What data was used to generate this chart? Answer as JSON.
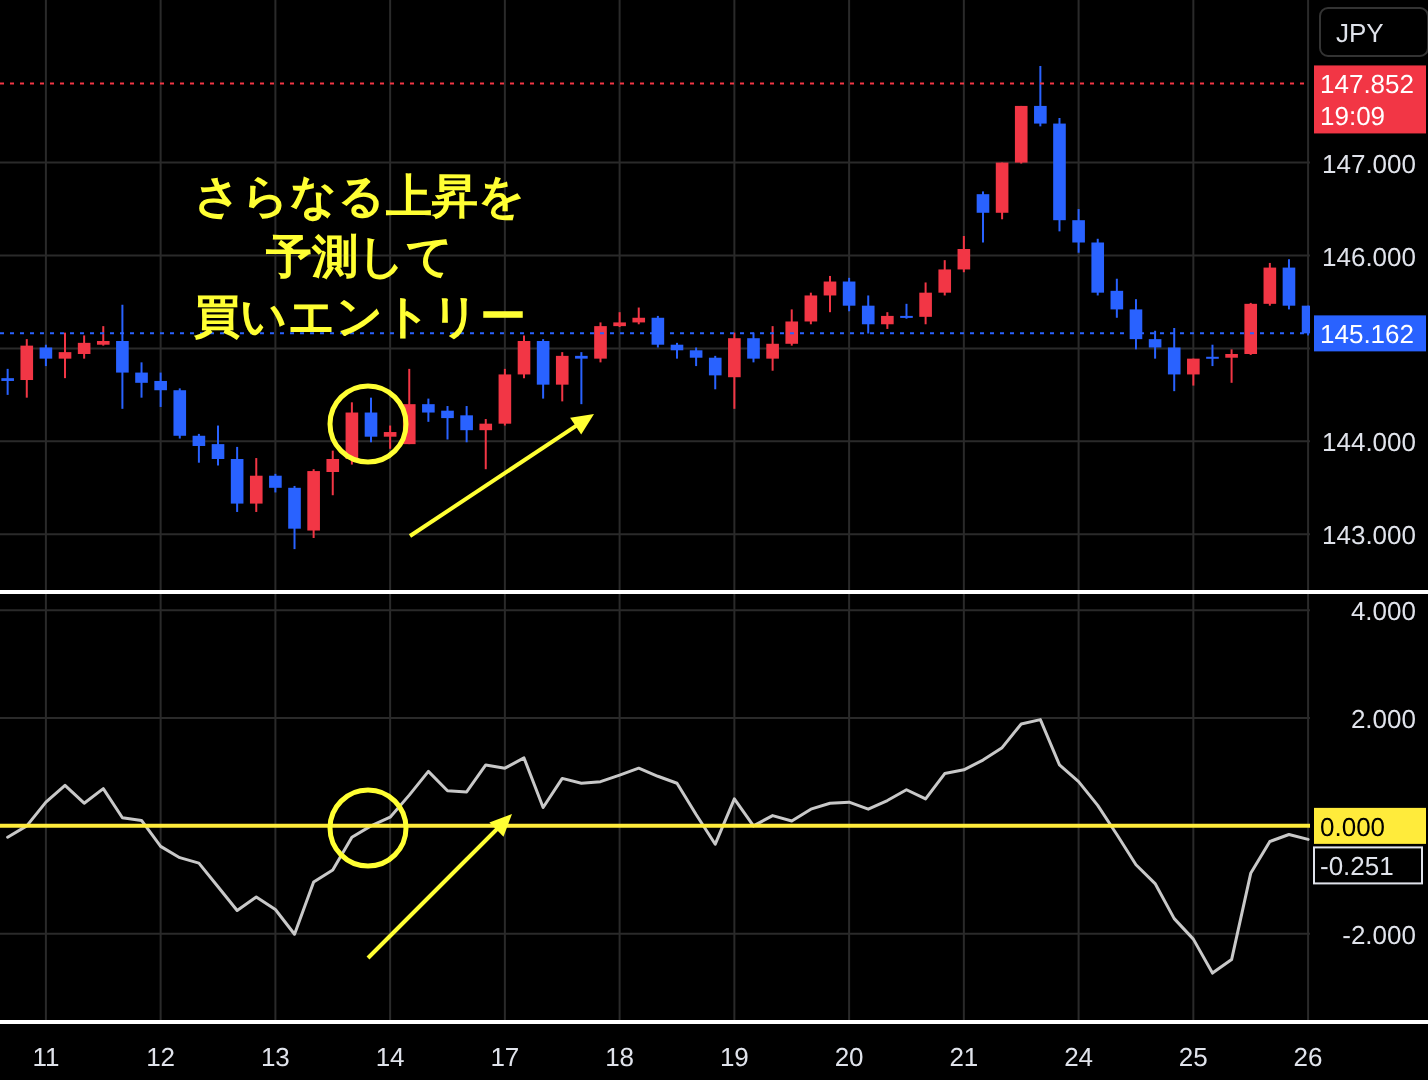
{
  "chart_data": [
    {
      "type": "candlestick",
      "categories": [
        null,
        null,
        "11",
        null,
        null,
        null,
        null,
        null,
        "12",
        null,
        null,
        null,
        null,
        null,
        "13",
        null,
        null,
        null,
        null,
        null,
        "14",
        null,
        null,
        null,
        null,
        null,
        "17",
        null,
        null,
        null,
        null,
        null,
        "18",
        null,
        null,
        null,
        null,
        null,
        "19",
        null,
        null,
        null,
        null,
        null,
        "20",
        null,
        null,
        null,
        null,
        null,
        "21",
        null,
        null,
        null,
        null,
        null,
        "24",
        null,
        null,
        null,
        null,
        null,
        "25",
        null,
        null,
        null,
        null,
        null,
        "26"
      ],
      "ohlc": [
        [
          144.68,
          144.78,
          144.5,
          144.65
        ],
        [
          144.66,
          145.1,
          144.47,
          145.03
        ],
        [
          145.01,
          145.04,
          144.81,
          144.89
        ],
        [
          144.89,
          145.17,
          144.68,
          144.96
        ],
        [
          144.94,
          145.14,
          144.89,
          145.06
        ],
        [
          145.04,
          145.24,
          145.03,
          145.08
        ],
        [
          145.08,
          145.47,
          144.35,
          144.74
        ],
        [
          144.74,
          144.85,
          144.47,
          144.63
        ],
        [
          144.65,
          144.74,
          144.37,
          144.55
        ],
        [
          144.55,
          144.57,
          144.03,
          144.06
        ],
        [
          144.06,
          144.08,
          143.77,
          143.95
        ],
        [
          143.97,
          144.17,
          143.74,
          143.81
        ],
        [
          143.81,
          143.94,
          143.24,
          143.33
        ],
        [
          143.33,
          143.82,
          143.24,
          143.63
        ],
        [
          143.63,
          143.65,
          143.45,
          143.5
        ],
        [
          143.5,
          143.52,
          142.84,
          143.06
        ],
        [
          143.04,
          143.7,
          142.96,
          143.68
        ],
        [
          143.67,
          143.9,
          143.42,
          143.81
        ],
        [
          143.81,
          144.42,
          143.75,
          144.31
        ],
        [
          144.31,
          144.47,
          143.99,
          144.05
        ],
        [
          144.05,
          144.17,
          143.92,
          144.1
        ],
        [
          143.97,
          144.78,
          143.97,
          144.4
        ],
        [
          144.4,
          144.46,
          144.21,
          144.31
        ],
        [
          144.33,
          144.38,
          144.02,
          144.25
        ],
        [
          144.28,
          144.38,
          143.99,
          144.12
        ],
        [
          144.12,
          144.24,
          143.7,
          144.19
        ],
        [
          144.19,
          144.78,
          144.17,
          144.72
        ],
        [
          144.72,
          145.14,
          144.68,
          145.08
        ],
        [
          145.08,
          145.1,
          144.46,
          144.61
        ],
        [
          144.61,
          144.96,
          144.43,
          144.92
        ],
        [
          144.92,
          144.96,
          144.4,
          144.89
        ],
        [
          144.89,
          145.28,
          144.85,
          145.24
        ],
        [
          145.24,
          145.39,
          145.23,
          145.28
        ],
        [
          145.28,
          145.44,
          145.26,
          145.33
        ],
        [
          145.33,
          145.35,
          145.01,
          145.04
        ],
        [
          145.04,
          145.06,
          144.89,
          144.98
        ],
        [
          144.98,
          145.01,
          144.81,
          144.9
        ],
        [
          144.9,
          144.92,
          144.56,
          144.71
        ],
        [
          144.69,
          145.17,
          144.35,
          145.11
        ],
        [
          145.11,
          145.17,
          144.85,
          144.89
        ],
        [
          144.89,
          145.24,
          144.76,
          145.05
        ],
        [
          145.05,
          145.42,
          145.03,
          145.29
        ],
        [
          145.29,
          145.6,
          145.26,
          145.57
        ],
        [
          145.57,
          145.78,
          145.39,
          145.72
        ],
        [
          145.72,
          145.76,
          145.4,
          145.46
        ],
        [
          145.46,
          145.57,
          145.16,
          145.26
        ],
        [
          145.26,
          145.39,
          145.21,
          145.35
        ],
        [
          145.35,
          145.48,
          145.32,
          145.34
        ],
        [
          145.34,
          145.71,
          145.26,
          145.6
        ],
        [
          145.6,
          145.95,
          145.57,
          145.85
        ],
        [
          145.85,
          146.21,
          145.82,
          146.07
        ],
        [
          146.66,
          146.69,
          146.14,
          146.46
        ],
        [
          146.46,
          147.0,
          146.39,
          147.0
        ],
        [
          147.0,
          147.61,
          146.99,
          147.61
        ],
        [
          147.61,
          148.04,
          147.39,
          147.42
        ],
        [
          147.42,
          147.48,
          146.26,
          146.38
        ],
        [
          146.38,
          146.5,
          146.03,
          146.14
        ],
        [
          146.14,
          146.18,
          145.57,
          145.6
        ],
        [
          145.62,
          145.75,
          145.33,
          145.42
        ],
        [
          145.42,
          145.53,
          144.99,
          145.1
        ],
        [
          145.1,
          145.19,
          144.89,
          145.01
        ],
        [
          145.01,
          145.22,
          144.54,
          144.72
        ],
        [
          144.72,
          144.89,
          144.6,
          144.89
        ],
        [
          144.91,
          145.04,
          144.81,
          144.89
        ],
        [
          144.9,
          144.99,
          144.63,
          144.94
        ],
        [
          144.94,
          145.49,
          144.93,
          145.48
        ],
        [
          145.48,
          145.92,
          145.46,
          145.87
        ],
        [
          145.87,
          145.96,
          145.42,
          145.46
        ],
        [
          145.46,
          145.46,
          145.14,
          145.162
        ]
      ],
      "colors": [
        "#2962ff",
        "#f23645",
        "#2962ff",
        "#f23645",
        "#f23645",
        "#f23645",
        "#2962ff",
        "#2962ff",
        "#2962ff",
        "#2962ff",
        "#2962ff",
        "#2962ff",
        "#2962ff",
        "#f23645",
        "#2962ff",
        "#2962ff",
        "#f23645",
        "#f23645",
        "#f23645",
        "#2962ff",
        "#f23645",
        "#f23645",
        "#2962ff",
        "#2962ff",
        "#2962ff",
        "#f23645",
        "#f23645",
        "#f23645",
        "#2962ff",
        "#f23645",
        "#2962ff",
        "#f23645",
        "#f23645",
        "#f23645",
        "#2962ff",
        "#2962ff",
        "#2962ff",
        "#2962ff",
        "#f23645",
        "#2962ff",
        "#f23645",
        "#f23645",
        "#f23645",
        "#f23645",
        "#2962ff",
        "#2962ff",
        "#f23645",
        "#2962ff",
        "#f23645",
        "#f23645",
        "#f23645",
        "#2962ff",
        "#f23645",
        "#f23645",
        "#2962ff",
        "#2962ff",
        "#2962ff",
        "#2962ff",
        "#2962ff",
        "#2962ff",
        "#2962ff",
        "#2962ff",
        "#f23645",
        "#2962ff",
        "#f23645",
        "#f23645",
        "#f23645",
        "#2962ff",
        "#2962ff"
      ],
      "ylim": [
        142.4,
        148.75
      ],
      "yticks": [
        {
          "value": 143,
          "label": "143.000"
        },
        {
          "value": 144,
          "label": "144.000"
        },
        {
          "value": 145,
          "label": null
        },
        {
          "value": 146,
          "label": "146.000"
        },
        {
          "value": 147,
          "label": "147.000"
        }
      ],
      "tick_labels": "y",
      "grid": true,
      "ref_lines": [
        {
          "axis": "y",
          "value": 147.852,
          "label": "147.852\n19:09",
          "color": "#f23645",
          "line_style": "dotted"
        },
        {
          "axis": "y",
          "value": 145.162,
          "label": "145.162",
          "color": "#2962ff",
          "line_style": "dotted"
        }
      ],
      "annotations": [
        "さらなる上昇を",
        "予測して",
        "買いエントリー",
        "JPY"
      ]
    },
    {
      "type": "line",
      "categories": [
        null,
        null,
        "11",
        null,
        null,
        null,
        null,
        null,
        "12",
        null,
        null,
        null,
        null,
        null,
        "13",
        null,
        null,
        null,
        null,
        null,
        "14",
        null,
        null,
        null,
        null,
        null,
        "17",
        null,
        null,
        null,
        null,
        null,
        "18",
        null,
        null,
        null,
        null,
        null,
        "19",
        null,
        null,
        null,
        null,
        null,
        "20",
        null,
        null,
        null,
        null,
        null,
        "21",
        null,
        null,
        null,
        null,
        null,
        "24",
        null,
        null,
        null,
        null,
        null,
        "25",
        null,
        null,
        null,
        null,
        null,
        "26"
      ],
      "series": [
        {
          "color": "#c8c8c8",
          "values": [
            -0.21,
            0.0,
            0.44,
            0.75,
            0.42,
            0.69,
            0.15,
            0.1,
            -0.38,
            -0.59,
            -0.69,
            -1.13,
            -1.57,
            -1.32,
            -1.55,
            -2.01,
            -1.04,
            -0.82,
            -0.21,
            0.0,
            0.16,
            0.57,
            1.01,
            0.65,
            0.63,
            1.13,
            1.07,
            1.26,
            0.34,
            0.88,
            0.79,
            0.82,
            0.94,
            1.07,
            0.92,
            0.79,
            0.21,
            -0.34,
            0.5,
            0.0,
            0.19,
            0.09,
            0.31,
            0.42,
            0.44,
            0.31,
            0.47,
            0.67,
            0.5,
            0.97,
            1.04,
            1.22,
            1.45,
            1.89,
            1.97,
            1.13,
            0.82,
            0.38,
            -0.16,
            -0.72,
            -1.07,
            -1.72,
            -2.1,
            -2.73,
            -2.48,
            -0.88,
            -0.29,
            -0.16,
            -0.251
          ],
          "value_labels": [
            null,
            null,
            null,
            null,
            null,
            null,
            null,
            null,
            null,
            null,
            null,
            null,
            null,
            null,
            null,
            null,
            null,
            null,
            null,
            null,
            null,
            null,
            null,
            null,
            null,
            null,
            null,
            null,
            null,
            null,
            null,
            null,
            null,
            null,
            null,
            null,
            null,
            null,
            null,
            null,
            null,
            null,
            null,
            null,
            null,
            null,
            null,
            null,
            null,
            null,
            null,
            null,
            null,
            null,
            null,
            null,
            null,
            null,
            null,
            null,
            null,
            null,
            null,
            null,
            null,
            null,
            null,
            null,
            "-0.251"
          ]
        }
      ],
      "ylim": [
        -3.6,
        4.3
      ],
      "yticks": [
        {
          "value": -2,
          "label": "-2.000"
        },
        {
          "value": 2,
          "label": "2.000"
        },
        {
          "value": 4,
          "label": "4.000"
        }
      ],
      "grid": true,
      "ref_lines": [
        {
          "axis": "y",
          "value": 0,
          "label": "0.000",
          "color": "#ffeb3b"
        }
      ]
    }
  ]
}
